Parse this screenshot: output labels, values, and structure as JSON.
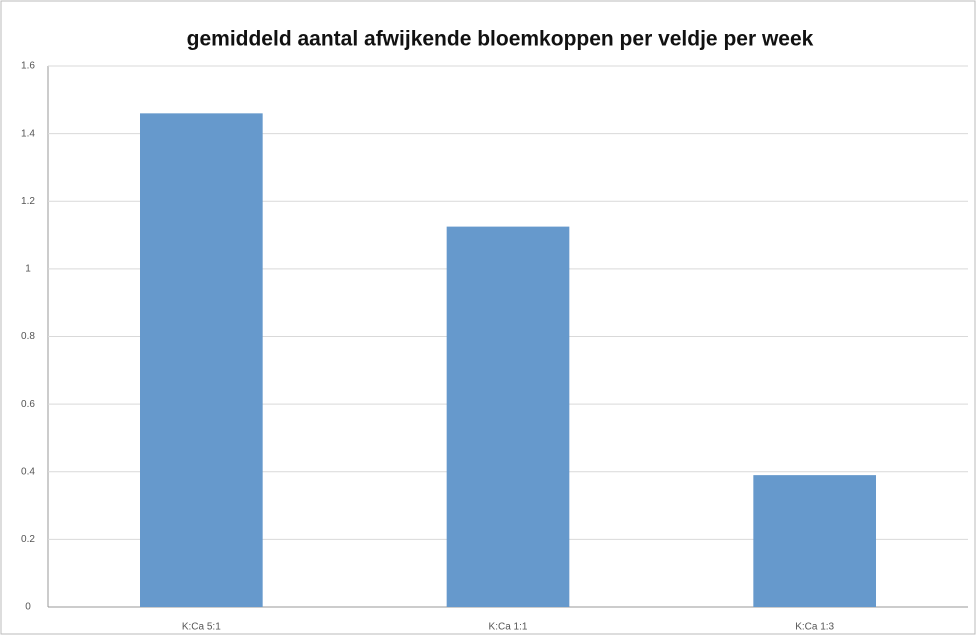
{
  "chart_data": {
    "type": "bar",
    "title": "gemiddeld aantal afwijkende bloemkoppen per veldje per week",
    "categories": [
      "K:Ca 5:1",
      "K:Ca 1:1",
      "K:Ca 1:3"
    ],
    "values": [
      1.46,
      1.125,
      0.39
    ],
    "color": "#6699cc",
    "ylim": [
      0,
      1.6
    ],
    "yticks": [
      0,
      0.2,
      0.4,
      0.6,
      0.8,
      1,
      1.2,
      1.4,
      1.6
    ],
    "grid": true
  }
}
